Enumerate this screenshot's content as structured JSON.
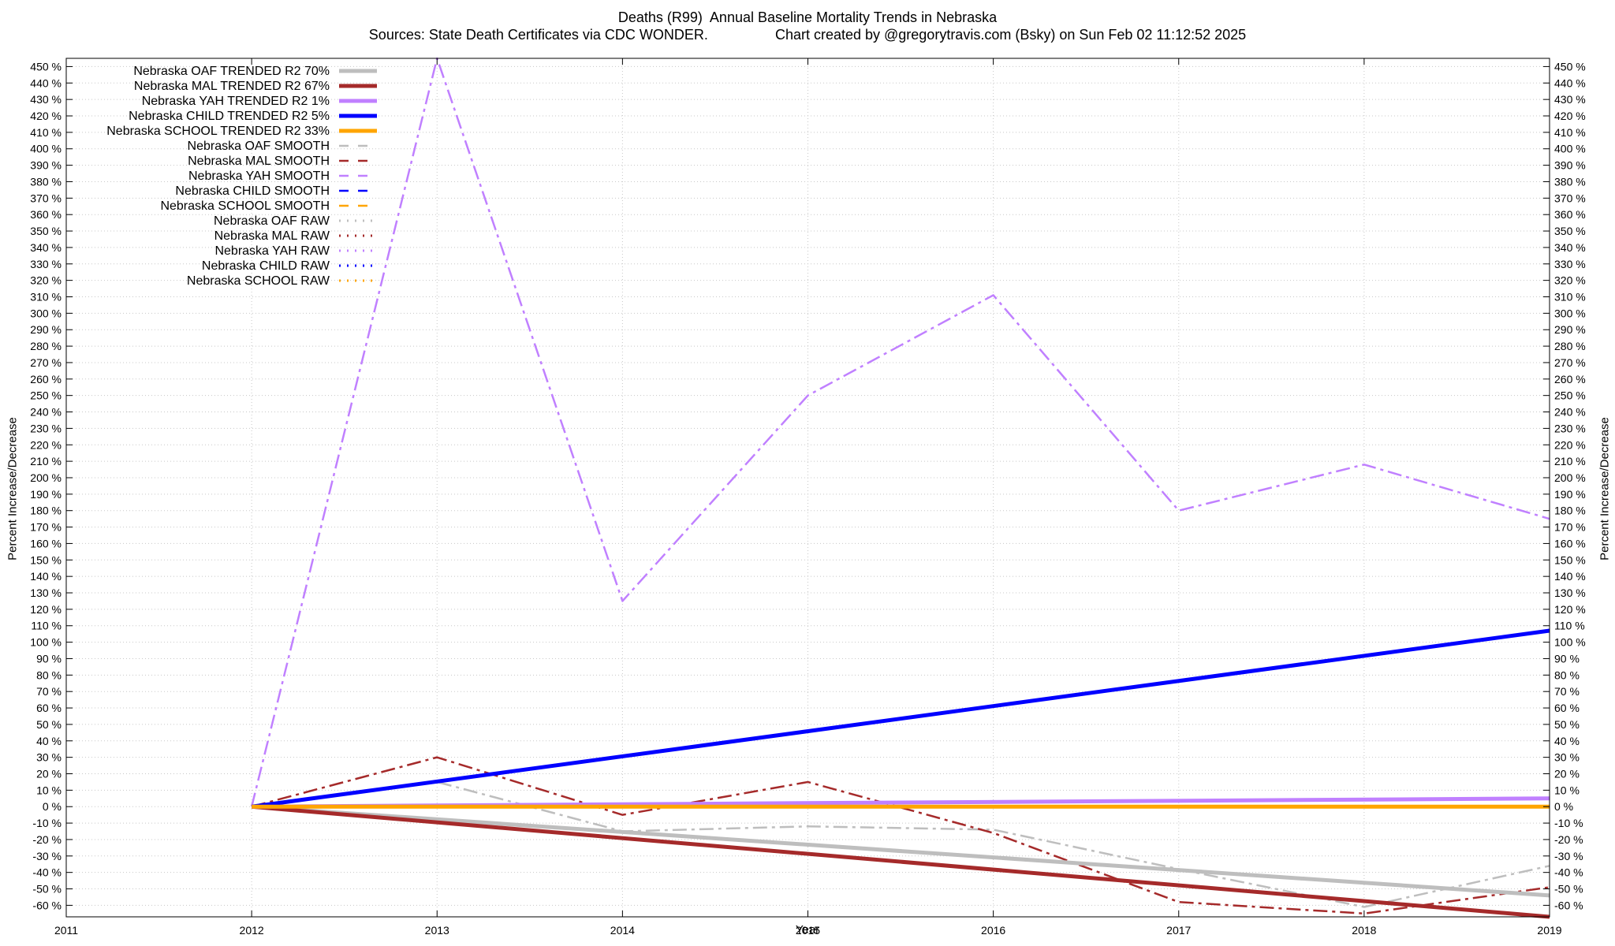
{
  "chart_data": {
    "type": "line",
    "title": "Deaths (R99)  Annual Baseline Mortality Trends in Nebraska",
    "subtitle": "Sources: State Death Certificates via CDC WONDER.                 Chart created by @gregorytravis.com (Bsky) on Sun Feb 02 11:12:52 2025",
    "xlabel": "Year",
    "ylabel": "Percent Increase/Decrease",
    "y2label": "Percent Increase/Decrease",
    "xlim": [
      2011,
      2019
    ],
    "ylim": [
      -67,
      455
    ],
    "x_ticks": [
      "2011",
      "2012",
      "2013",
      "2014",
      "2015",
      "2016",
      "2017",
      "2018",
      "2019"
    ],
    "y_ticks": [
      -60,
      -50,
      -40,
      -30,
      -20,
      -10,
      0,
      10,
      20,
      30,
      40,
      50,
      60,
      70,
      80,
      90,
      100,
      110,
      120,
      130,
      140,
      150,
      160,
      170,
      180,
      190,
      200,
      210,
      220,
      230,
      240,
      250,
      260,
      270,
      280,
      290,
      300,
      310,
      320,
      330,
      340,
      350,
      360,
      370,
      380,
      390,
      400,
      410,
      420,
      430,
      440,
      450
    ],
    "y_tick_suffix": " %",
    "grid": true,
    "legend_position": "top-left",
    "series": [
      {
        "name": "Nebraska OAF TRENDED R2  70%",
        "style": "trend",
        "color": "#bebebe",
        "x": [
          2012,
          2019
        ],
        "values": [
          0,
          -54
        ]
      },
      {
        "name": "Nebraska MAL TRENDED R2  67%",
        "style": "trend",
        "color": "#a52a2a",
        "x": [
          2012,
          2019
        ],
        "values": [
          0,
          -67
        ]
      },
      {
        "name": "Nebraska YAH TRENDED R2   1%",
        "style": "trend",
        "color": "#c080ff",
        "x": [
          2012,
          2019
        ],
        "values": [
          0,
          5
        ]
      },
      {
        "name": "Nebraska CHILD TRENDED R2   5%",
        "style": "trend",
        "color": "#0000ff",
        "x": [
          2012,
          2019
        ],
        "values": [
          0,
          107
        ]
      },
      {
        "name": "Nebraska SCHOOL TRENDED R2  33%",
        "style": "trend",
        "color": "#ffa500",
        "x": [
          2012,
          2019
        ],
        "values": [
          0,
          0
        ]
      },
      {
        "name": "Nebraska OAF SMOOTH",
        "style": "smooth",
        "color": "#bebebe",
        "x": [
          2012,
          2013,
          2014,
          2015,
          2016,
          2017,
          2018,
          2019
        ],
        "values": [
          0,
          15,
          -15,
          -12,
          -14,
          -38,
          -61,
          -36
        ]
      },
      {
        "name": "Nebraska MAL SMOOTH",
        "style": "smooth",
        "color": "#a52a2a",
        "x": [
          2012,
          2013,
          2014,
          2015,
          2016,
          2017,
          2018,
          2019
        ],
        "values": [
          0,
          30,
          -5,
          15,
          -16,
          -58,
          -65,
          -49
        ]
      },
      {
        "name": "Nebraska YAH SMOOTH",
        "style": "smooth",
        "color": "#c080ff",
        "x": [
          2012,
          2013,
          2014,
          2015,
          2016,
          2017,
          2018,
          2019
        ],
        "values": [
          0,
          455,
          125,
          250,
          311,
          180,
          208,
          175
        ]
      },
      {
        "name": "Nebraska CHILD SMOOTH",
        "style": "smooth",
        "color": "#0000ff",
        "x": [],
        "values": []
      },
      {
        "name": "Nebraska SCHOOL SMOOTH",
        "style": "smooth",
        "color": "#ffa500",
        "x": [],
        "values": []
      },
      {
        "name": "Nebraska OAF RAW",
        "style": "raw",
        "color": "#bebebe",
        "x": [],
        "values": []
      },
      {
        "name": "Nebraska MAL RAW",
        "style": "raw",
        "color": "#a52a2a",
        "x": [],
        "values": []
      },
      {
        "name": "Nebraska YAH RAW",
        "style": "raw",
        "color": "#c080ff",
        "x": [],
        "values": []
      },
      {
        "name": "Nebraska CHILD RAW",
        "style": "raw",
        "color": "#0000ff",
        "x": [],
        "values": []
      },
      {
        "name": "Nebraska SCHOOL RAW",
        "style": "raw",
        "color": "#ffa500",
        "x": [],
        "values": []
      }
    ]
  }
}
